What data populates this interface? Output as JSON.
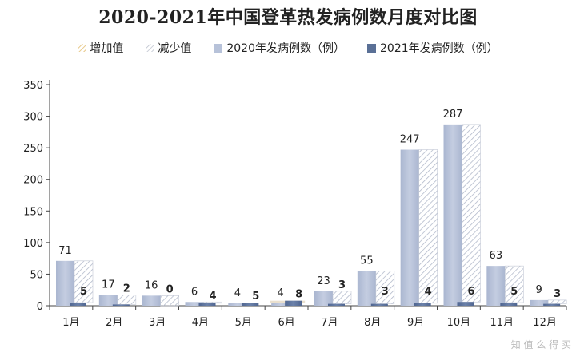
{
  "chart_data": {
    "type": "bar",
    "title": "2020-2021年中国登革热发病例数月度对比图",
    "categories": [
      "1月",
      "2月",
      "3月",
      "4月",
      "5月",
      "6月",
      "7月",
      "8月",
      "9月",
      "10月",
      "11月",
      "12月"
    ],
    "series": [
      {
        "name": "2020年发病例数（例）",
        "values": [
          71,
          17,
          16,
          6,
          4,
          4,
          23,
          55,
          247,
          287,
          63,
          9
        ],
        "color": "#b7c2d9"
      },
      {
        "name": "2021年发病例数（例）",
        "values": [
          5,
          2,
          0,
          4,
          5,
          8,
          3,
          3,
          4,
          6,
          5,
          3
        ],
        "color": "#5a7096"
      }
    ],
    "legend_extra": [
      {
        "name": "增加值",
        "pattern": "yellow-hatch"
      },
      {
        "name": "减少值",
        "pattern": "gray-hatch"
      }
    ],
    "ylim": [
      0,
      350
    ],
    "yticks": [
      0,
      50,
      100,
      150,
      200,
      250,
      300,
      350
    ],
    "xlabel": "",
    "ylabel": "",
    "grid": false,
    "legend_position": "top"
  },
  "watermark": "知 值 么 得 买"
}
